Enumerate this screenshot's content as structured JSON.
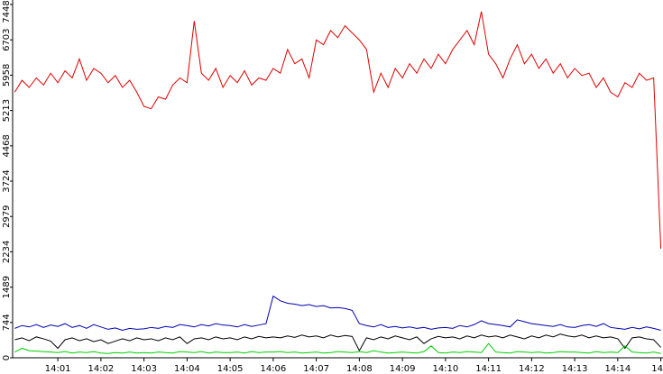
{
  "chart_data": {
    "type": "line",
    "x": [
      0,
      0.1667,
      0.3333,
      0.5,
      0.6667,
      0.8333,
      1,
      1.1667,
      1.3333,
      1.5,
      1.6667,
      1.8333,
      2,
      2.1667,
      2.3333,
      2.5,
      2.6667,
      2.8333,
      3,
      3.1667,
      3.3333,
      3.5,
      3.6667,
      3.8333,
      4,
      4.1667,
      4.3333,
      4.5,
      4.6667,
      4.8333,
      5,
      5.1667,
      5.3333,
      5.5,
      5.6667,
      5.8333,
      6,
      6.1667,
      6.3333,
      6.5,
      6.6667,
      6.8333,
      7,
      7.1667,
      7.3333,
      7.5,
      7.6667,
      7.8333,
      8,
      8.1667,
      8.3333,
      8.5,
      8.6667,
      8.8333,
      9,
      9.1667,
      9.3333,
      9.5,
      9.6667,
      9.8333,
      10,
      10.1667,
      10.3333,
      10.5,
      10.6667,
      10.8333,
      11,
      11.1667,
      11.3333,
      11.5,
      11.6667,
      11.8333,
      12,
      12.1667,
      12.3333,
      12.5,
      12.6667,
      12.8333,
      13,
      13.1667,
      13.3333,
      13.5,
      13.6667,
      13.8333,
      14,
      14.1667,
      14.3333,
      14.5,
      14.6667,
      14.8333,
      15
    ],
    "series": [
      {
        "color": "#e00000",
        "values": [
          5600,
          5850,
          5700,
          5900,
          5750,
          6000,
          5800,
          6050,
          5900,
          6300,
          5850,
          6100,
          6000,
          5800,
          5950,
          5700,
          5850,
          5600,
          5300,
          5250,
          5500,
          5450,
          5750,
          5900,
          5800,
          7100,
          6000,
          5850,
          6100,
          5700,
          5950,
          5800,
          6050,
          5750,
          5900,
          5850,
          6100,
          6000,
          6500,
          6200,
          6300,
          5900,
          6700,
          6600,
          6900,
          6750,
          7000,
          6850,
          6700,
          6500,
          5600,
          6000,
          5700,
          6100,
          5900,
          6200,
          6000,
          6300,
          6100,
          6400,
          6200,
          6500,
          6700,
          6900,
          6600,
          7300,
          6400,
          6200,
          5900,
          6300,
          6600,
          6200,
          6400,
          6100,
          6300,
          6000,
          6200,
          5900,
          6100,
          5950,
          6000,
          5700,
          5900,
          5600,
          5500,
          5800,
          5700,
          6000,
          5850,
          5900,
          2300
        ]
      },
      {
        "color": "#0000b0",
        "values": [
          620,
          680,
          650,
          700,
          640,
          690,
          660,
          720,
          640,
          680,
          620,
          700,
          650,
          600,
          630,
          580,
          620,
          600,
          610,
          640,
          620,
          660,
          640,
          700,
          680,
          650,
          700,
          670,
          720,
          690,
          680,
          650,
          700,
          660,
          690,
          720,
          1300,
          1200,
          1150,
          1130,
          1100,
          1120,
          1080,
          1100,
          1050,
          1060,
          1040,
          1000,
          720,
          680,
          650,
          700,
          640,
          660,
          630,
          650,
          620,
          640,
          600,
          630,
          640,
          620,
          680,
          650,
          700,
          780,
          720,
          700,
          680,
          650,
          800,
          760,
          720,
          700,
          680,
          660,
          700,
          650,
          640,
          680,
          700,
          660,
          720,
          640,
          620,
          600,
          640,
          610,
          650,
          620,
          580
        ]
      },
      {
        "color": "#000000",
        "values": [
          380,
          420,
          360,
          440,
          400,
          350,
          200,
          380,
          420,
          360,
          400,
          340,
          380,
          300,
          350,
          400,
          360,
          420,
          380,
          400,
          360,
          420,
          380,
          440,
          300,
          400,
          420,
          380,
          440,
          400,
          420,
          380,
          440,
          400,
          450,
          420,
          440,
          420,
          460,
          430,
          480,
          440,
          460,
          420,
          480,
          440,
          470,
          450,
          150,
          420,
          380,
          440,
          400,
          460,
          420,
          380,
          440,
          300,
          400,
          450,
          420,
          440,
          400,
          460,
          420,
          480,
          440,
          460,
          420,
          480,
          440,
          400,
          460,
          420,
          480,
          440,
          500,
          460,
          440,
          480,
          420,
          460,
          420,
          440,
          400,
          200,
          420,
          440,
          400,
          380,
          220
        ]
      },
      {
        "color": "#00d000",
        "values": [
          120,
          200,
          150,
          140,
          130,
          120,
          110,
          130,
          100,
          120,
          110,
          130,
          100,
          90,
          110,
          100,
          120,
          100,
          110,
          100,
          120,
          110,
          100,
          130,
          120,
          110,
          130,
          100,
          120,
          110,
          110,
          120,
          100,
          130,
          110,
          120,
          120,
          130,
          110,
          120,
          100,
          110,
          120,
          100,
          110,
          130,
          120,
          110,
          130,
          110,
          150,
          120,
          100,
          110,
          120,
          110,
          100,
          130,
          250,
          110,
          100,
          120,
          110,
          130,
          120,
          110,
          300,
          120,
          110,
          100,
          130,
          120,
          110,
          120,
          100,
          110,
          130,
          120,
          120,
          110,
          100,
          130,
          110,
          120,
          110,
          250,
          120,
          110,
          100,
          120,
          90
        ]
      }
    ],
    "xlim": [
      -0.05,
      15.05
    ],
    "xticks": [
      {
        "value": 1,
        "label": "14:01"
      },
      {
        "value": 2,
        "label": "14:02"
      },
      {
        "value": 3,
        "label": "14:03"
      },
      {
        "value": 4,
        "label": "14:04"
      },
      {
        "value": 5,
        "label": "14:05"
      },
      {
        "value": 6,
        "label": "14:06"
      },
      {
        "value": 7,
        "label": "14:07"
      },
      {
        "value": 8,
        "label": "14:08"
      },
      {
        "value": 9,
        "label": "14:09"
      },
      {
        "value": 10,
        "label": "14:10"
      },
      {
        "value": 11,
        "label": "14:11"
      },
      {
        "value": 12,
        "label": "14:12"
      },
      {
        "value": 13,
        "label": "14:13"
      },
      {
        "value": 14,
        "label": "14:14"
      },
      {
        "value": 15,
        "label": "14"
      }
    ],
    "ylim": [
      0,
      7448
    ],
    "yticks": [
      0,
      744,
      1489,
      2234,
      2979,
      3724,
      4468,
      5213,
      5958,
      6703,
      7448
    ]
  }
}
